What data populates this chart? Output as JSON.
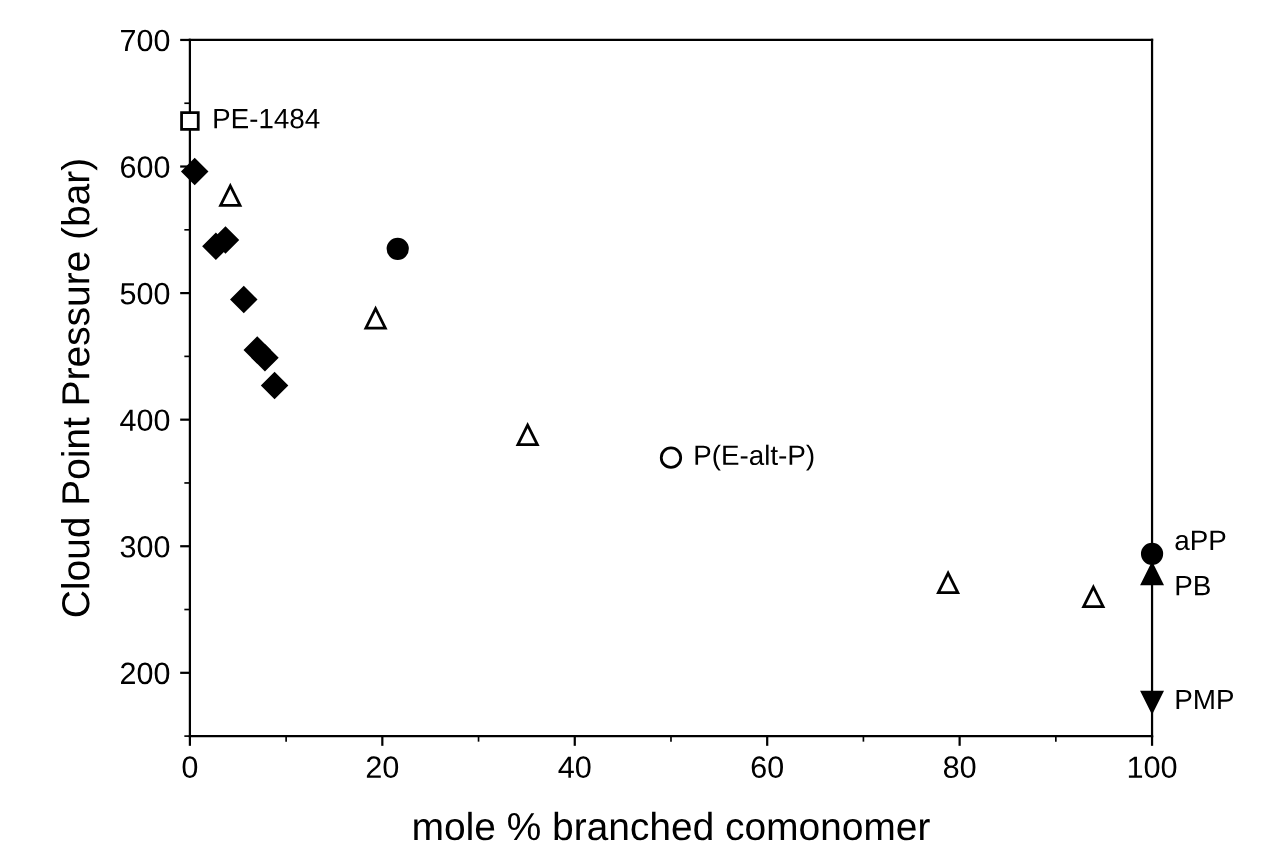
{
  "chart_data": {
    "type": "scatter",
    "xlabel": "mole % branched comonomer",
    "ylabel": "Cloud Point Pressure (bar)",
    "xlim": [
      0,
      100
    ],
    "ylim": [
      150,
      700
    ],
    "xticks": [
      0,
      20,
      40,
      60,
      80,
      100
    ],
    "yticks": [
      200,
      300,
      400,
      500,
      600,
      700
    ],
    "grid": false,
    "legend": false,
    "series": [
      {
        "color": "#000000",
        "marker": "diamond",
        "x": [
          0.5,
          2.7,
          3.7,
          5.6,
          7.0,
          7.8,
          8.8
        ],
        "values": [
          596,
          537,
          542,
          495,
          455,
          449,
          427
        ]
      },
      {
        "color": "#ffffff",
        "marker": "triangle",
        "x": [
          4.2,
          19.3,
          35.1,
          78.8,
          93.9
        ],
        "values": [
          577,
          480,
          388,
          271,
          260
        ]
      },
      {
        "color": "#000000",
        "marker": "circle",
        "x": [
          21.6,
          100
        ],
        "values": [
          535,
          294
        ]
      },
      {
        "color": "#ffffff",
        "marker": "square",
        "x": [
          0
        ],
        "values": [
          636
        ]
      },
      {
        "color": "#ffffff",
        "marker": "circle",
        "x": [
          50
        ],
        "values": [
          370
        ]
      },
      {
        "color": "#000000",
        "marker": "triangle",
        "x": [
          100
        ],
        "values": [
          278
        ]
      },
      {
        "color": "#000000",
        "marker": "triangle_down",
        "x": [
          100
        ],
        "values": [
          177
        ]
      }
    ],
    "annotations": [
      {
        "text": "PE-1484",
        "x": 0,
        "y": 636
      },
      {
        "text": "P(E-alt-P)",
        "x": 50,
        "y": 370
      },
      {
        "text": "aPP",
        "x": 100,
        "y": 294
      },
      {
        "text": "PB",
        "x": 100,
        "y": 278
      },
      {
        "text": "PMP",
        "x": 100,
        "y": 177
      }
    ]
  }
}
